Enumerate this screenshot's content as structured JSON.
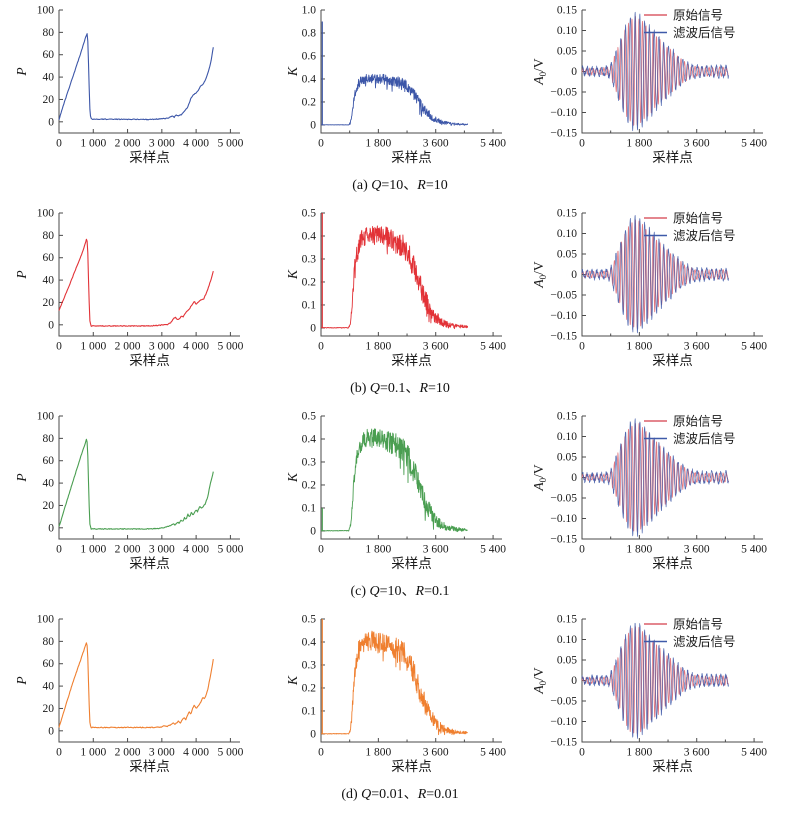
{
  "figure": {
    "background": "#ffffff",
    "text_color": "#1a1a1a",
    "axis_color": "#4a4a4a"
  },
  "chart_data": {
    "type": "line",
    "grid": "4 rows x 3 cols, Kalman filter results",
    "columns": [
      {
        "role": "error-covariance",
        "xlabel": "采样点",
        "ylabel": "P",
        "xlim": [
          0,
          5280
        ],
        "xticks": [
          0,
          1000,
          2000,
          3000,
          4000,
          5000
        ],
        "xtick_labels": [
          "0",
          "1 000",
          "2 000",
          "3 000",
          "4 000",
          "5 000"
        ],
        "minor_xticks": [],
        "ylim": [
          -10,
          100
        ],
        "yticks": [
          0,
          20,
          40,
          60,
          80,
          100
        ],
        "ytick_labels": [
          "0",
          "20",
          "40",
          "60",
          "80",
          "100"
        ]
      },
      {
        "role": "kalman-gain",
        "xlabel": "采样点",
        "ylabel": "K",
        "xlim": [
          0,
          5680
        ],
        "xticks": [
          0,
          1800,
          3600,
          5400
        ],
        "xtick_labels": [
          "0",
          "1 800",
          "3 600",
          "5 400"
        ],
        "minor_xticks": [
          900,
          2700,
          4500
        ]
      },
      {
        "role": "signal",
        "xlabel": "采样点",
        "ylabel": "A0/V",
        "xlim": [
          0,
          5680
        ],
        "xticks": [
          0,
          1800,
          3600,
          5400
        ],
        "xtick_labels": [
          "0",
          "1 800",
          "3 600",
          "5 400"
        ],
        "minor_xticks": [
          900,
          2700,
          4500
        ],
        "ylim": [
          -0.15,
          0.15
        ],
        "yticks": [
          -0.15,
          -0.1,
          -0.05,
          0,
          0.05,
          0.1,
          0.15
        ],
        "ytick_labels": [
          "−0.15",
          "−0.10",
          "−0.05",
          "0",
          "0.05",
          "0.10",
          "0.15"
        ],
        "legend": {
          "position": "top-right",
          "entries": [
            {
              "label": "原始信号",
              "color": "#dc5f69"
            },
            {
              "label": "滤波后信号",
              "color": "#3f5aa9"
            }
          ]
        },
        "envelope": [
          [
            0,
            0.004
          ],
          [
            600,
            0.004
          ],
          [
            800,
            0.006
          ],
          [
            900,
            0.012
          ],
          [
            1000,
            0.03
          ],
          [
            1100,
            0.05
          ],
          [
            1200,
            0.07
          ],
          [
            1300,
            0.09
          ],
          [
            1400,
            0.105
          ],
          [
            1500,
            0.12
          ],
          [
            1600,
            0.128
          ],
          [
            1700,
            0.131
          ],
          [
            1800,
            0.127
          ],
          [
            1900,
            0.118
          ],
          [
            2000,
            0.11
          ],
          [
            2100,
            0.102
          ],
          [
            2200,
            0.094
          ],
          [
            2300,
            0.086
          ],
          [
            2400,
            0.078
          ],
          [
            2500,
            0.07
          ],
          [
            2600,
            0.062
          ],
          [
            2700,
            0.055
          ],
          [
            2800,
            0.048
          ],
          [
            2900,
            0.041
          ],
          [
            3000,
            0.034
          ],
          [
            3100,
            0.028
          ],
          [
            3200,
            0.022
          ],
          [
            3300,
            0.017
          ],
          [
            3400,
            0.013
          ],
          [
            3500,
            0.01
          ],
          [
            3700,
            0.008
          ],
          [
            4000,
            0.007
          ],
          [
            4300,
            0.008
          ],
          [
            4600,
            0.007
          ]
        ],
        "series": [
          {
            "name": "原始信号",
            "color": "#dc5f69",
            "period": 110,
            "phase": 0,
            "scale": 1.0,
            "base": 0.0025
          },
          {
            "name": "滤波后信号",
            "color": "#3f5aa9",
            "period": 150,
            "phase": 0.9,
            "scale": 1.06,
            "base": 0.005
          }
        ]
      }
    ],
    "k_mean": [
      [
        0,
        0.001
      ],
      [
        870,
        0.001
      ],
      [
        920,
        0.02
      ],
      [
        960,
        0.07
      ],
      [
        1000,
        0.15
      ],
      [
        1050,
        0.25
      ],
      [
        1100,
        0.31
      ],
      [
        1180,
        0.36
      ],
      [
        1280,
        0.39
      ],
      [
        1400,
        0.4
      ],
      [
        1600,
        0.405
      ],
      [
        1800,
        0.4
      ],
      [
        2000,
        0.395
      ],
      [
        2200,
        0.385
      ],
      [
        2400,
        0.37
      ],
      [
        2550,
        0.355
      ],
      [
        2650,
        0.34
      ],
      [
        2750,
        0.315
      ],
      [
        2850,
        0.285
      ],
      [
        2950,
        0.25
      ],
      [
        3050,
        0.21
      ],
      [
        3150,
        0.17
      ],
      [
        3250,
        0.135
      ],
      [
        3350,
        0.1
      ],
      [
        3450,
        0.075
      ],
      [
        3550,
        0.055
      ],
      [
        3650,
        0.04
      ],
      [
        3750,
        0.03
      ],
      [
        3850,
        0.022
      ],
      [
        3950,
        0.016
      ],
      [
        4100,
        0.011
      ],
      [
        4300,
        0.008
      ],
      [
        4600,
        0.005
      ]
    ],
    "k_noise": [
      [
        0,
        0.0008
      ],
      [
        870,
        0.0008
      ],
      [
        950,
        0.01
      ],
      [
        1050,
        0.025
      ],
      [
        1200,
        0.03
      ],
      [
        1500,
        0.028
      ],
      [
        1900,
        0.03
      ],
      [
        2300,
        0.033
      ],
      [
        2700,
        0.036
      ],
      [
        3000,
        0.035
      ],
      [
        3300,
        0.028
      ],
      [
        3600,
        0.018
      ],
      [
        3900,
        0.01
      ],
      [
        4200,
        0.006
      ],
      [
        4600,
        0.003
      ]
    ],
    "rows": [
      {
        "id": "a",
        "caption": "(a) Q=10、R=10",
        "color": "#3c56a8",
        "seed": 11,
        "p_points": [
          [
            0,
            2
          ],
          [
            150,
            17
          ],
          [
            400,
            40
          ],
          [
            650,
            63
          ],
          [
            780,
            76
          ],
          [
            820,
            79
          ],
          [
            845,
            70
          ],
          [
            875,
            35
          ],
          [
            905,
            6
          ],
          [
            950,
            2.5
          ],
          [
            2600,
            2
          ],
          [
            3050,
            2.8
          ],
          [
            3200,
            3.5
          ],
          [
            3300,
            5
          ],
          [
            3360,
            4
          ],
          [
            3420,
            6.5
          ],
          [
            3470,
            5
          ],
          [
            3570,
            6.5
          ],
          [
            3650,
            9
          ],
          [
            3750,
            13
          ],
          [
            3850,
            21
          ],
          [
            3920,
            24.5
          ],
          [
            3990,
            25.5
          ],
          [
            4060,
            28
          ],
          [
            4130,
            32
          ],
          [
            4200,
            33.5
          ],
          [
            4280,
            38
          ],
          [
            4370,
            46
          ],
          [
            4440,
            55
          ],
          [
            4500,
            67
          ]
        ],
        "k_spike": 0.9,
        "k_ylim": [
          -0.07,
          1.0
        ],
        "k_yticks": [
          0,
          0.2,
          0.4,
          0.6,
          0.8,
          1.0
        ],
        "k_ytick_labels": [
          "0",
          "0.2",
          "0.4",
          "0.6",
          "0.8",
          "1.0"
        ]
      },
      {
        "id": "b",
        "caption": "(b) Q=0.1、R=10",
        "color": "#e23237",
        "seed": 22,
        "p_points": [
          [
            0,
            13
          ],
          [
            150,
            24
          ],
          [
            400,
            43
          ],
          [
            650,
            62
          ],
          [
            780,
            74
          ],
          [
            810,
            78
          ],
          [
            835,
            70
          ],
          [
            865,
            35
          ],
          [
            895,
            4
          ],
          [
            935,
            -1
          ],
          [
            2600,
            -1
          ],
          [
            2950,
            -0.5
          ],
          [
            3100,
            0.5
          ],
          [
            3160,
            0
          ],
          [
            3260,
            2
          ],
          [
            3340,
            5.5
          ],
          [
            3400,
            7
          ],
          [
            3450,
            4.5
          ],
          [
            3520,
            5.5
          ],
          [
            3570,
            8
          ],
          [
            3620,
            7
          ],
          [
            3700,
            11
          ],
          [
            3800,
            14
          ],
          [
            3900,
            19
          ],
          [
            3950,
            21
          ],
          [
            4000,
            18.5
          ],
          [
            4060,
            20.5
          ],
          [
            4120,
            22
          ],
          [
            4220,
            23
          ],
          [
            4320,
            30
          ],
          [
            4420,
            39
          ],
          [
            4500,
            48
          ]
        ],
        "k_spike": 0.5,
        "k_ylim": [
          -0.035,
          0.5
        ],
        "k_yticks": [
          0,
          0.1,
          0.2,
          0.3,
          0.4,
          0.5
        ],
        "k_ytick_labels": [
          "0",
          "0.1",
          "0.2",
          "0.3",
          "0.4",
          "0.5"
        ]
      },
      {
        "id": "c",
        "caption": "(c) Q=10、R=0.1",
        "color": "#4a9e51",
        "seed": 33,
        "p_points": [
          [
            0,
            1
          ],
          [
            150,
            16
          ],
          [
            400,
            41
          ],
          [
            650,
            65
          ],
          [
            780,
            77
          ],
          [
            810,
            80
          ],
          [
            835,
            71
          ],
          [
            865,
            35
          ],
          [
            895,
            4
          ],
          [
            935,
            -1
          ],
          [
            2600,
            -1
          ],
          [
            2950,
            -0.5
          ],
          [
            3100,
            0.5
          ],
          [
            3250,
            2
          ],
          [
            3330,
            3.5
          ],
          [
            3380,
            2.5
          ],
          [
            3460,
            5
          ],
          [
            3510,
            4
          ],
          [
            3560,
            7
          ],
          [
            3610,
            5.5
          ],
          [
            3660,
            9
          ],
          [
            3710,
            7.5
          ],
          [
            3760,
            12
          ],
          [
            3810,
            9.5
          ],
          [
            3860,
            13.5
          ],
          [
            3910,
            11.5
          ],
          [
            3990,
            16
          ],
          [
            4040,
            14.5
          ],
          [
            4100,
            19
          ],
          [
            4160,
            17.5
          ],
          [
            4260,
            21
          ],
          [
            4340,
            28
          ],
          [
            4420,
            40
          ],
          [
            4500,
            50
          ]
        ],
        "k_spike": 0.1,
        "k_ylim": [
          -0.035,
          0.5
        ],
        "k_yticks": [
          0,
          0.1,
          0.2,
          0.3,
          0.4,
          0.5
        ],
        "k_ytick_labels": [
          "0",
          "0.1",
          "0.2",
          "0.3",
          "0.4",
          "0.5"
        ]
      },
      {
        "id": "d",
        "caption": "(d) Q=0.01、R=0.01",
        "color": "#ef7f2f",
        "seed": 44,
        "p_points": [
          [
            0,
            3
          ],
          [
            150,
            18
          ],
          [
            400,
            43
          ],
          [
            650,
            65
          ],
          [
            780,
            77
          ],
          [
            810,
            80
          ],
          [
            835,
            71
          ],
          [
            865,
            38
          ],
          [
            895,
            8
          ],
          [
            935,
            3
          ],
          [
            2600,
            3
          ],
          [
            2950,
            3.2
          ],
          [
            3080,
            4.5
          ],
          [
            3140,
            3.8
          ],
          [
            3240,
            5
          ],
          [
            3330,
            7
          ],
          [
            3390,
            5.8
          ],
          [
            3480,
            8.5
          ],
          [
            3540,
            7
          ],
          [
            3600,
            10
          ],
          [
            3650,
            12
          ],
          [
            3700,
            10
          ],
          [
            3750,
            14
          ],
          [
            3800,
            17
          ],
          [
            3850,
            15
          ],
          [
            3900,
            20.5
          ],
          [
            3950,
            23
          ],
          [
            4000,
            20
          ],
          [
            4060,
            22
          ],
          [
            4140,
            26
          ],
          [
            4200,
            30
          ],
          [
            4250,
            28.5
          ],
          [
            4340,
            37
          ],
          [
            4430,
            51
          ],
          [
            4500,
            64
          ]
        ],
        "k_spike": 0.5,
        "k_ylim": [
          -0.035,
          0.5
        ],
        "k_yticks": [
          0,
          0.1,
          0.2,
          0.3,
          0.4,
          0.5
        ],
        "k_ytick_labels": [
          "0",
          "0.1",
          "0.2",
          "0.3",
          "0.4",
          "0.5"
        ]
      }
    ]
  }
}
